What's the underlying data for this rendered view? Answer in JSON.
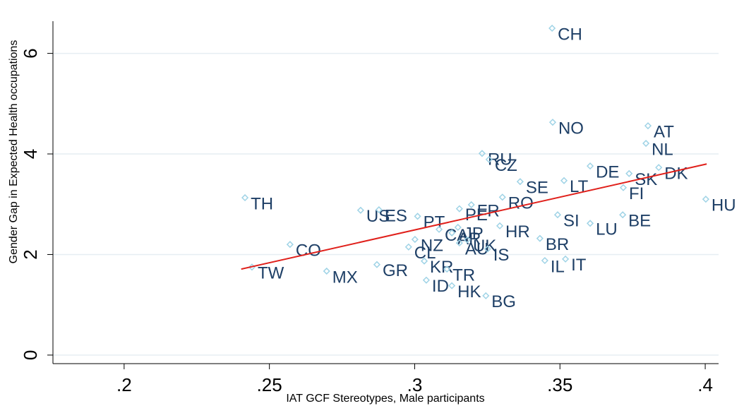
{
  "chart_data": {
    "type": "scatter",
    "x_label": "IAT GCF Stereotypes, Male participants",
    "y_label": "Gender Gap in Expected Health occupations",
    "point_labels": [
      "CH",
      "NO",
      "AT",
      "NL",
      "RU",
      "CZ",
      "DE",
      "DK",
      "SK",
      "SE",
      "LT",
      "FI",
      "TH",
      "HU",
      "RO",
      "FR",
      "US",
      "ES",
      "PE",
      "PT",
      "SI",
      "BE",
      "LU",
      "HR",
      "CA",
      "AR",
      "JP",
      "BR",
      "NZ",
      "AU",
      "UK",
      "CO",
      "CL",
      "IS",
      "IL",
      "IT",
      "TW",
      "GR",
      "KR",
      "MX",
      "TR",
      "ID",
      "HK",
      "BG"
    ],
    "x": [
      0.3473,
      0.3475,
      0.3803,
      0.3796,
      0.3232,
      0.3256,
      0.3604,
      0.384,
      0.3738,
      0.3363,
      0.3514,
      0.3718,
      0.2416,
      0.4002,
      0.3302,
      0.3195,
      0.2814,
      0.2877,
      0.3154,
      0.301,
      0.3492,
      0.3716,
      0.3604,
      0.3293,
      0.3084,
      0.3128,
      0.3149,
      0.3431,
      0.3001,
      0.3154,
      0.3181,
      0.2571,
      0.2979,
      0.3251,
      0.3448,
      0.3519,
      0.244,
      0.287,
      0.3033,
      0.2697,
      0.3111,
      0.304,
      0.3128,
      0.3245
    ],
    "values": [
      6.5,
      4.63,
      4.56,
      4.21,
      4.01,
      3.89,
      3.76,
      3.73,
      3.61,
      3.45,
      3.47,
      3.33,
      3.13,
      3.1,
      3.14,
      2.99,
      2.88,
      2.89,
      2.91,
      2.76,
      2.79,
      2.79,
      2.62,
      2.57,
      2.5,
      2.43,
      2.54,
      2.32,
      2.3,
      2.23,
      2.29,
      2.2,
      2.15,
      2.11,
      1.88,
      1.91,
      1.75,
      1.8,
      1.87,
      1.67,
      1.71,
      1.49,
      1.38,
      1.18
    ],
    "color": "#9fd3e6",
    "label_color": "#1e3f66",
    "fit": {
      "x": [
        0.2403,
        0.4005
      ],
      "y": [
        1.71,
        3.8
      ],
      "color": "#e0201b"
    },
    "xlim": [
      0.1755,
      0.4046
    ],
    "ylim": [
      -0.17,
      6.64
    ],
    "xticks": [
      {
        "value": 0.2,
        "label": ".2"
      },
      {
        "value": 0.25,
        "label": ".25"
      },
      {
        "value": 0.3,
        "label": ".3"
      },
      {
        "value": 0.35,
        "label": ".35"
      },
      {
        "value": 0.4,
        "label": ".4"
      }
    ],
    "yticks": [
      0,
      2,
      4,
      6
    ],
    "grid": true
  }
}
